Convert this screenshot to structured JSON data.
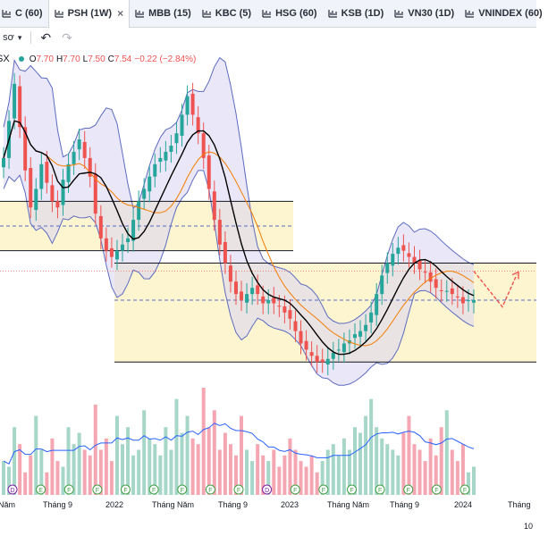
{
  "tabs": [
    {
      "label": "C (60)",
      "active": false
    },
    {
      "label": "PSH (1W)",
      "active": true
    },
    {
      "label": "MBB (15)",
      "active": false
    },
    {
      "label": "KBC (5)",
      "active": false
    },
    {
      "label": "HSG (60)",
      "active": false
    },
    {
      "label": "KSB (1D)",
      "active": false
    },
    {
      "label": "VN30 (1D)",
      "active": false
    },
    {
      "label": "VNINDEX (60)",
      "active": false
    }
  ],
  "toolbar": {
    "indicators_label": "ổ sơ",
    "undo_icon": "undo-icon",
    "redo_icon": "redo-icon"
  },
  "legend": {
    "symbol": "SX",
    "open_key": "O",
    "open": "7.70",
    "high_key": "H",
    "high": "7.70",
    "low_key": "L",
    "low": "7.50",
    "close_key": "C",
    "close": "7.54",
    "change": "−0.22 (−2.84%)"
  },
  "x_axis": [
    "Năm",
    "Tháng 9",
    "2022",
    "Tháng Năm",
    "Tháng 9",
    "2023",
    "Tháng Năm",
    "Tháng 9",
    "2024",
    "Tháng"
  ],
  "corner_label": "10",
  "colors": {
    "up": "#26a69a",
    "down": "#ef5350",
    "zone": "#fdf3c4",
    "band": "#d9d4f2",
    "ma": "#000000",
    "ma2": "#f57c00",
    "vol_ma": "#2962ff"
  },
  "chart_data": {
    "type": "candlestick",
    "title": "",
    "price": [
      11.2,
      12.4,
      13.6,
      12.2,
      10.8,
      9.6,
      10.2,
      11.0,
      10.4,
      9.8,
      9.6,
      10.5,
      11.0,
      11.4,
      11.8,
      11.2,
      10.6,
      9.4,
      8.6,
      8.2,
      8.0,
      8.2,
      8.4,
      8.6,
      9.2,
      9.8,
      10.2,
      10.6,
      11.0,
      11.2,
      11.4,
      11.6,
      12.0,
      12.6,
      13.2,
      12.6,
      12.0,
      11.2,
      10.2,
      9.2,
      8.4,
      7.8,
      7.2,
      6.8,
      6.6,
      6.8,
      7.0,
      6.8,
      6.5,
      6.6,
      6.5,
      6.4,
      6.2,
      6.0,
      5.6,
      5.2,
      5.0,
      4.8,
      4.6,
      4.6,
      4.7,
      4.9,
      5.0,
      5.2,
      5.3,
      5.5,
      5.6,
      5.8,
      6.2,
      6.8,
      7.4,
      7.8,
      8.1,
      8.3,
      8.2,
      8.0,
      7.8,
      7.6,
      7.5,
      7.2,
      7.0,
      6.9,
      6.9,
      6.8,
      6.7,
      6.5,
      6.6,
      6.6
    ],
    "upper_level": 9.8,
    "lower_level": 8.2,
    "mid_level": 9.0,
    "zone2_top": 7.8,
    "zone2_bottom": 4.6,
    "zone2_mid": 6.6,
    "last_close": 7.54,
    "volume": [
      30,
      25,
      60,
      45,
      20,
      35,
      70,
      40,
      20,
      50,
      30,
      25,
      60,
      45,
      55,
      40,
      35,
      80,
      40,
      50,
      30,
      70,
      45,
      60,
      35,
      40,
      75,
      50,
      45,
      35,
      60,
      40,
      85,
      55,
      70,
      50,
      45,
      95,
      60,
      75,
      40,
      55,
      45,
      35,
      70,
      40,
      30,
      45,
      35,
      30,
      40,
      25,
      35,
      50,
      40,
      30,
      25,
      35,
      20,
      30,
      40,
      45,
      35,
      50,
      40,
      60,
      55,
      70,
      85,
      60,
      50,
      45,
      40,
      35,
      55,
      70,
      45,
      40,
      30,
      50,
      35,
      60,
      75,
      40,
      30,
      45,
      20,
      25
    ],
    "events": [
      {
        "type": "D"
      },
      {
        "type": "E"
      },
      {
        "type": "F"
      },
      {
        "type": "F"
      },
      {
        "type": "F"
      },
      {
        "type": "F"
      },
      {
        "type": "F"
      },
      {
        "type": "F"
      },
      {
        "type": "F"
      },
      {
        "type": "D"
      },
      {
        "type": "F"
      },
      {
        "type": "F"
      },
      {
        "type": "F"
      },
      {
        "type": "F"
      },
      {
        "type": "F"
      },
      {
        "type": "F"
      },
      {
        "type": "F"
      }
    ]
  }
}
